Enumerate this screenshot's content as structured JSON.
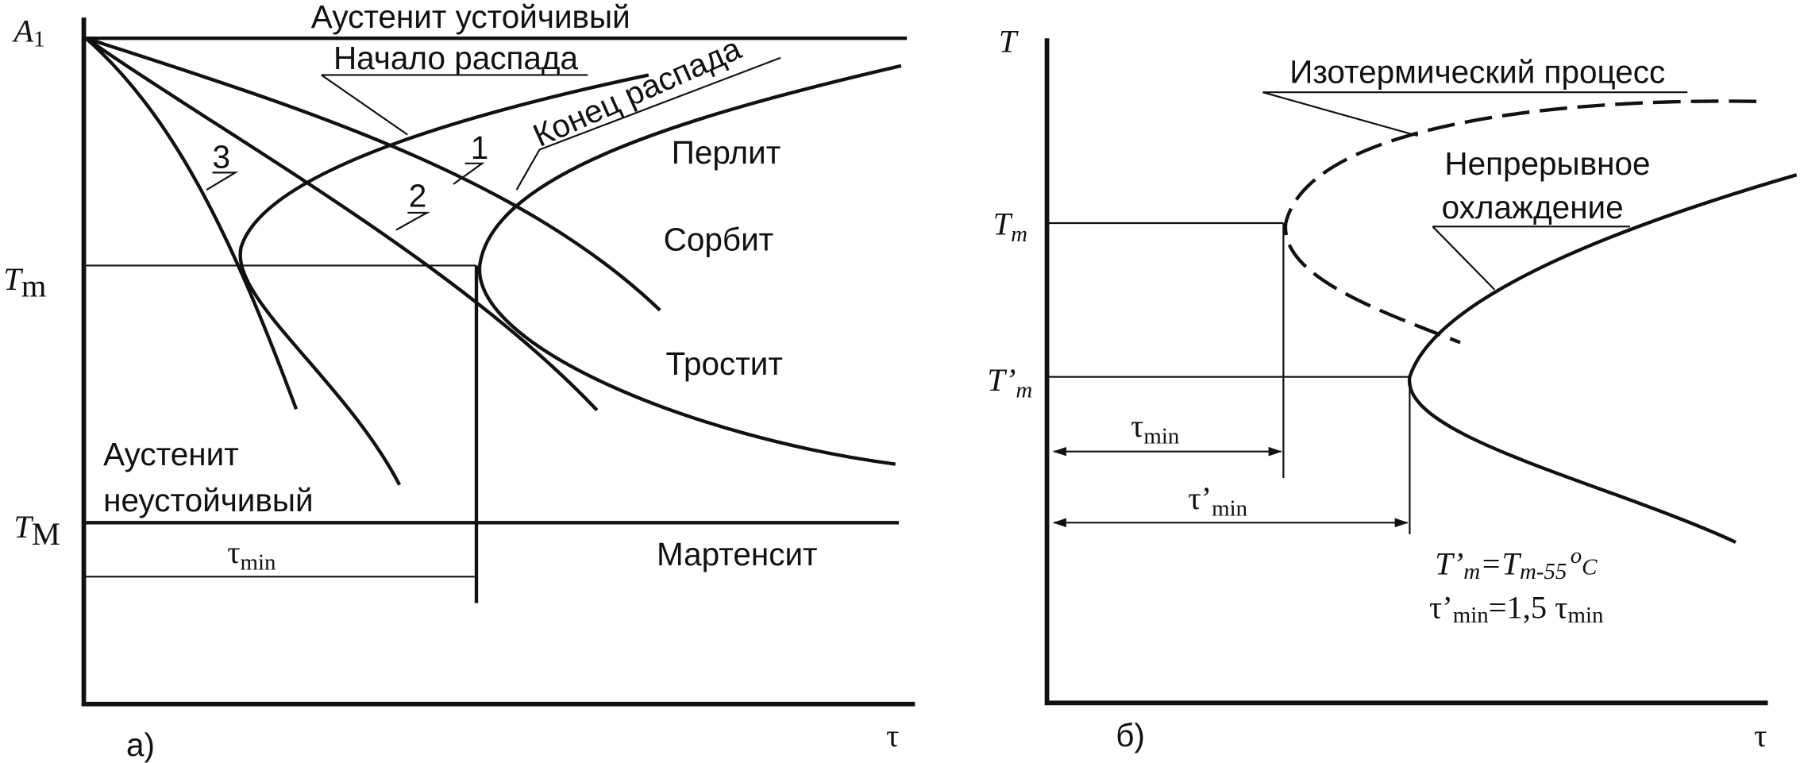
{
  "panel_a": {
    "caption": "а)",
    "x_axis": "τ",
    "y_labels": {
      "a1": {
        "main": "A",
        "sub": "1"
      },
      "tm": {
        "main": "T",
        "sub": "m"
      },
      "tM": {
        "main": "T",
        "sub": "М"
      }
    },
    "regions": {
      "stable": "Аустенит устойчивый",
      "pearlite": "Перлит",
      "sorbite": "Сорбит",
      "troostite": "Тростит",
      "unstable_1": "Аустенит",
      "unstable_2": "неустойчивый",
      "martensite": "Мартенсит"
    },
    "curves": {
      "start": "Начало распада",
      "end": "Конец распада",
      "c1": "1",
      "c2": "2",
      "c3": "3"
    },
    "tau_min": {
      "main": "τ",
      "sub": "min"
    }
  },
  "panel_b": {
    "caption": "б)",
    "x_axis": "τ",
    "y_labels": {
      "t": "T",
      "tm": {
        "main": "T",
        "sub": "m"
      },
      "tpm": {
        "main": "T’",
        "sub": "m"
      }
    },
    "curves": {
      "isothermal": "Изотермический процесс",
      "continuous_1": "Непрерывное",
      "continuous_2": "охлаждение"
    },
    "tau_min": {
      "main": "τ",
      "sub": "min"
    },
    "tau_pmin": {
      "main": "τ’",
      "sub": "min"
    },
    "formula_1": {
      "a": "T’",
      "b": "m",
      "c": "=T",
      "d": "m-55",
      "e": "o",
      "f": "C"
    },
    "formula_2": {
      "a": "τ’",
      "b": "min",
      "c": "=1,5 τ",
      "d": "min"
    }
  }
}
